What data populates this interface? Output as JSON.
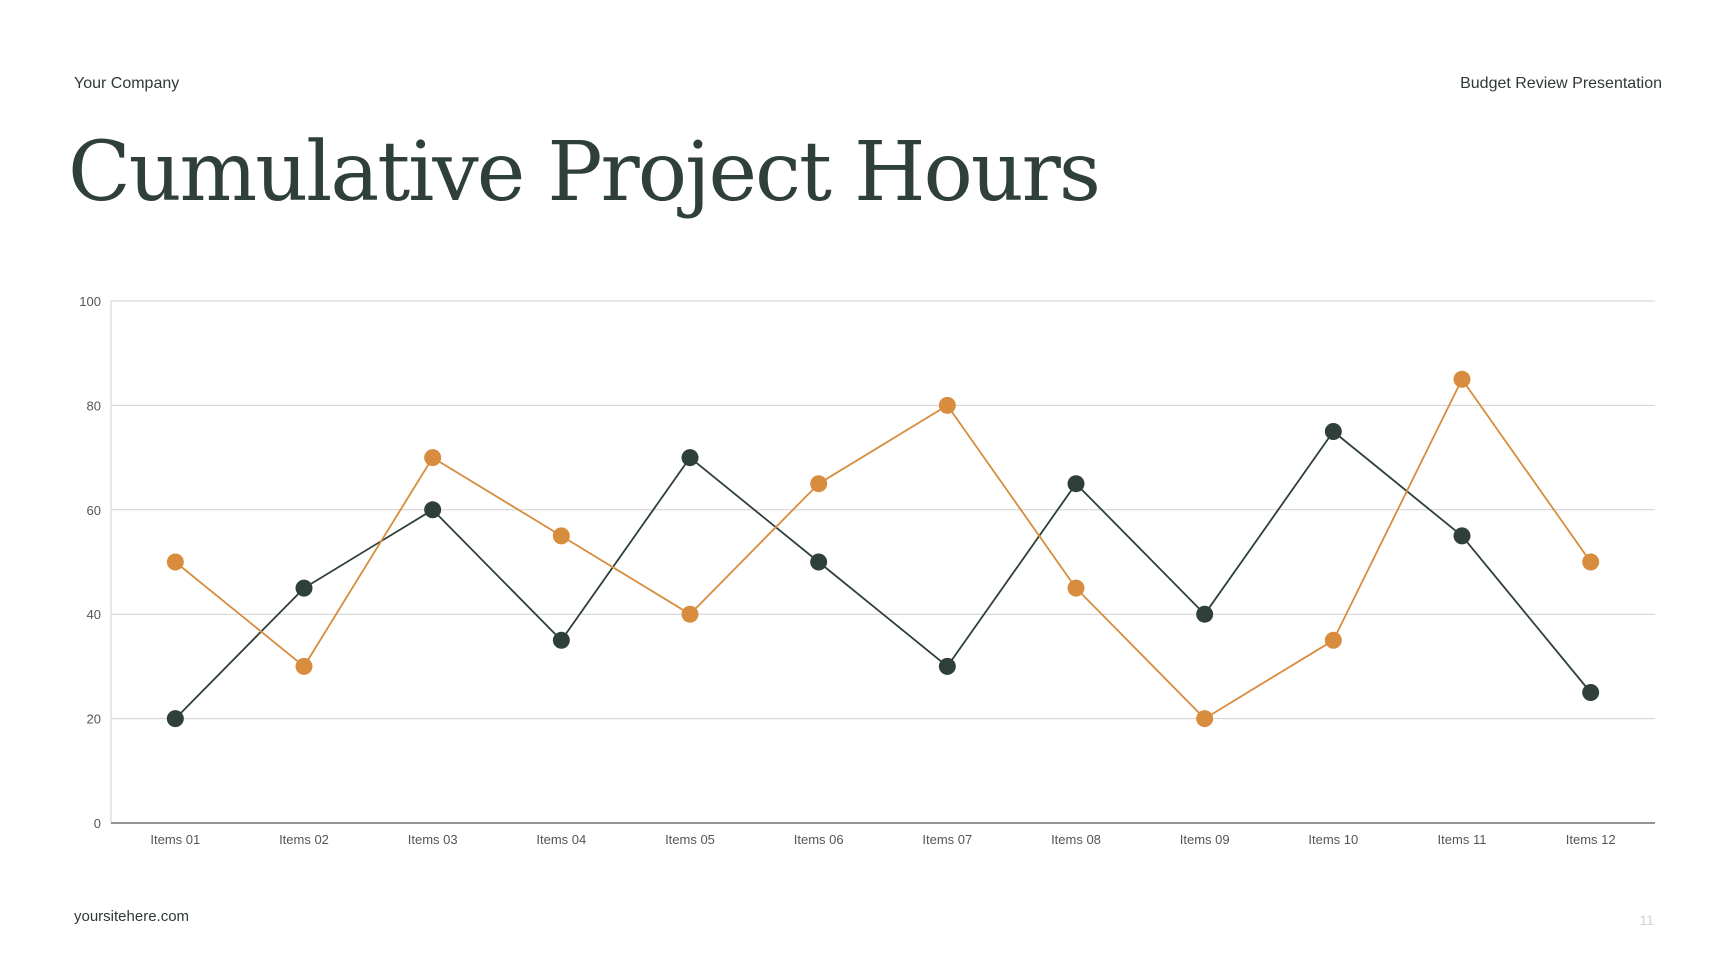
{
  "header": {
    "company": "Your Company",
    "deck_title": "Budget Review Presentation"
  },
  "page_title": "Cumulative Project Hours",
  "footer": {
    "site": "yoursitehere.com",
    "page_number": "11"
  },
  "colors": {
    "series_dark": "#2f4039",
    "series_orange": "#d88c3e",
    "grid": "#d0d0d0",
    "axis": "#555555"
  },
  "chart_data": {
    "type": "line",
    "categories": [
      "Items 01",
      "Items 02",
      "Items 03",
      "Items 04",
      "Items 05",
      "Items 06",
      "Items 07",
      "Items 08",
      "Items 09",
      "Items 10",
      "Items 11",
      "Items 12"
    ],
    "series": [
      {
        "color": "#2f4039",
        "values": [
          20,
          45,
          60,
          35,
          70,
          50,
          30,
          65,
          40,
          75,
          55,
          25
        ]
      },
      {
        "color": "#d88c3e",
        "values": [
          50,
          30,
          70,
          55,
          40,
          65,
          80,
          45,
          20,
          35,
          85,
          50
        ]
      }
    ],
    "ylim": [
      0,
      100
    ],
    "yticks": [
      0,
      20,
      40,
      60,
      80,
      100
    ],
    "grid": true,
    "legend": "none"
  }
}
